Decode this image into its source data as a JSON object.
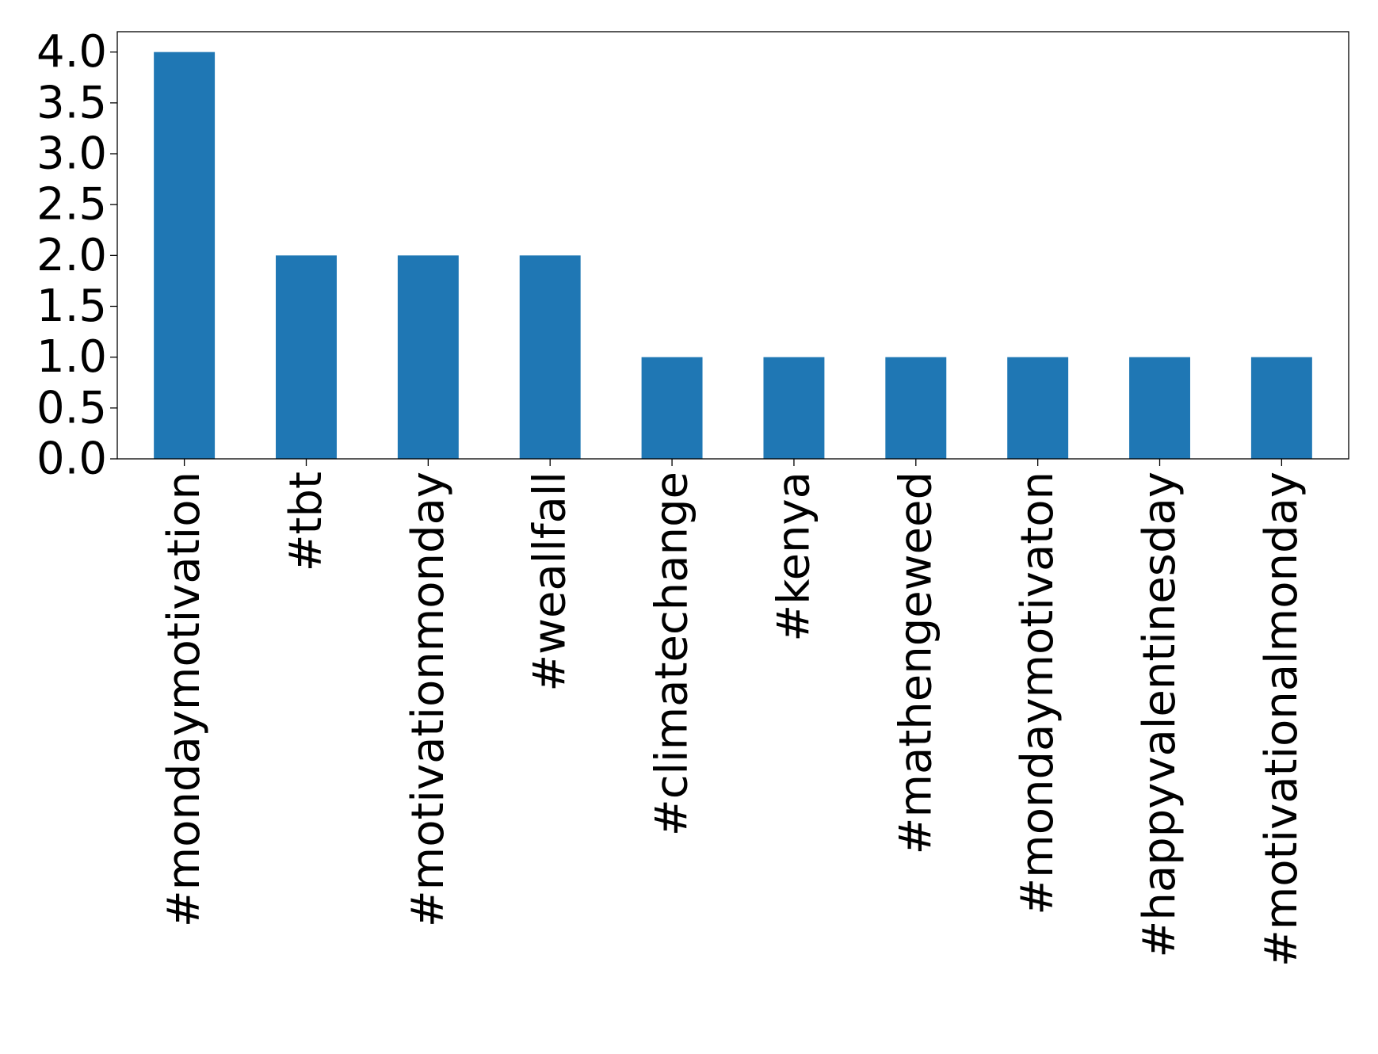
{
  "chart_data": {
    "type": "bar",
    "categories": [
      "#mondaymotivation",
      "#tbt",
      "#motivationmonday",
      "#weallfall",
      "#climatechange",
      "#kenya",
      "#mathengeweed",
      "#mondaymotivaton",
      "#happyvalentinesday",
      "#motivationalmonday"
    ],
    "values": [
      4,
      2,
      2,
      2,
      1,
      1,
      1,
      1,
      1,
      1
    ],
    "ylim": [
      0,
      4.2
    ],
    "yticks": [
      "0.0",
      "0.5",
      "1.0",
      "1.5",
      "2.0",
      "2.5",
      "3.0",
      "3.5",
      "4.0"
    ],
    "bar_color": "#1f77b4",
    "grid": false,
    "legend": false
  }
}
